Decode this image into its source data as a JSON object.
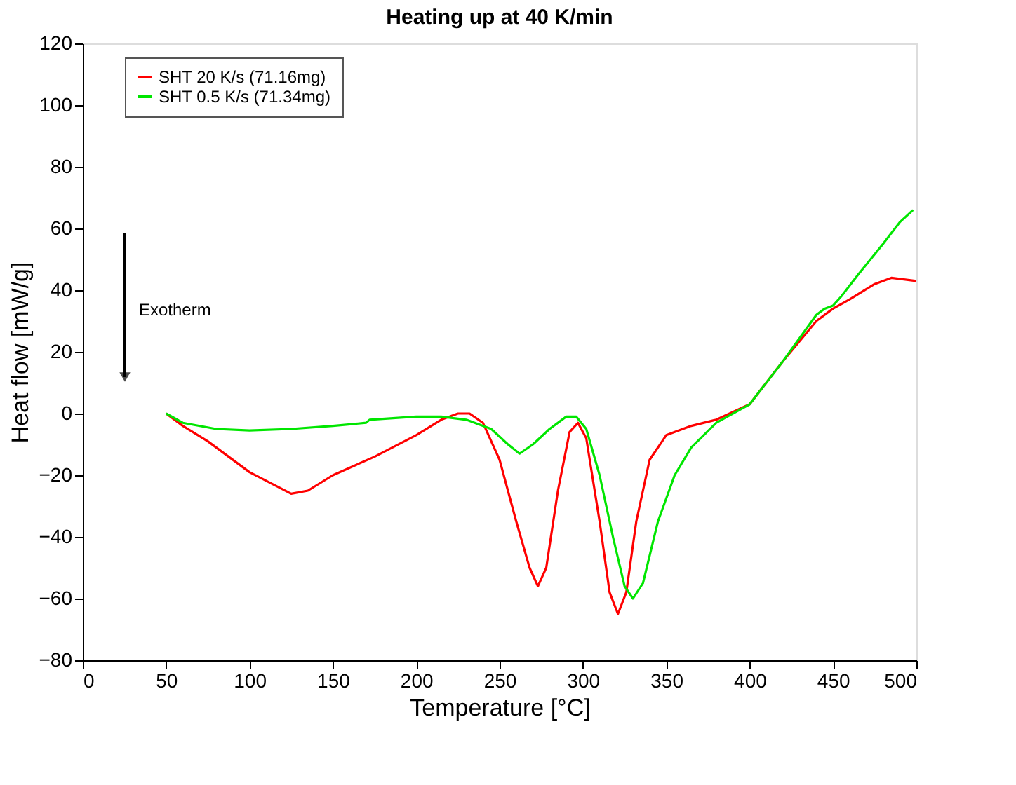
{
  "chart_data": {
    "type": "line",
    "title": "Heating up at 40 K/min",
    "xlabel": "Temperature [°C]",
    "ylabel": "Heat flow [mW/g]",
    "xlim": [
      0,
      500
    ],
    "xticks": [
      0,
      50,
      100,
      150,
      200,
      250,
      300,
      350,
      400,
      450,
      500
    ],
    "ylim": [
      -80,
      120
    ],
    "yticks": [
      -80,
      -60,
      -40,
      -20,
      0,
      20,
      40,
      60,
      80,
      100,
      120
    ],
    "grid": false,
    "legend": "top left",
    "line_style": "solid",
    "marker": "none",
    "annotations": [
      "Exotherm"
    ],
    "series": [
      {
        "name": "SHT 20 K/s (71.16mg)",
        "color": "#ff0000",
        "x": [
          50,
          60,
          75,
          100,
          125,
          135,
          150,
          175,
          200,
          215,
          225,
          232,
          240,
          250,
          260,
          268,
          273,
          278,
          285,
          292,
          297,
          302,
          310,
          316,
          321,
          326,
          332,
          340,
          350,
          365,
          380,
          400,
          420,
          440,
          450,
          460,
          475,
          485,
          500
        ],
        "values": [
          0,
          -4,
          -9,
          -19,
          -26,
          -25,
          -20,
          -14,
          -7,
          -2,
          0,
          0,
          -3,
          -15,
          -35,
          -50,
          -56,
          -50,
          -25,
          -6,
          -3,
          -8,
          -35,
          -58,
          -65,
          -58,
          -35,
          -15,
          -7,
          -4,
          -2,
          3,
          17,
          30,
          34,
          37,
          42,
          44,
          43
        ]
      },
      {
        "name": "SHT 0.5 K/s (71.34mg)",
        "color": "#00e600",
        "x": [
          50,
          60,
          80,
          100,
          125,
          150,
          170,
          172,
          200,
          215,
          230,
          245,
          255,
          262,
          270,
          280,
          290,
          296,
          302,
          310,
          318,
          325,
          330,
          336,
          345,
          355,
          365,
          380,
          400,
          420,
          440,
          445,
          450,
          455,
          465,
          480,
          490,
          498
        ],
        "values": [
          0,
          -3,
          -5,
          -5.5,
          -5,
          -4,
          -3,
          -2,
          -1,
          -1,
          -2,
          -5,
          -10,
          -13,
          -10,
          -5,
          -1,
          -1,
          -5,
          -20,
          -40,
          -56,
          -60,
          -55,
          -35,
          -20,
          -11,
          -3,
          3,
          17,
          32,
          34,
          35,
          38,
          45,
          55,
          62,
          66
        ]
      }
    ]
  }
}
